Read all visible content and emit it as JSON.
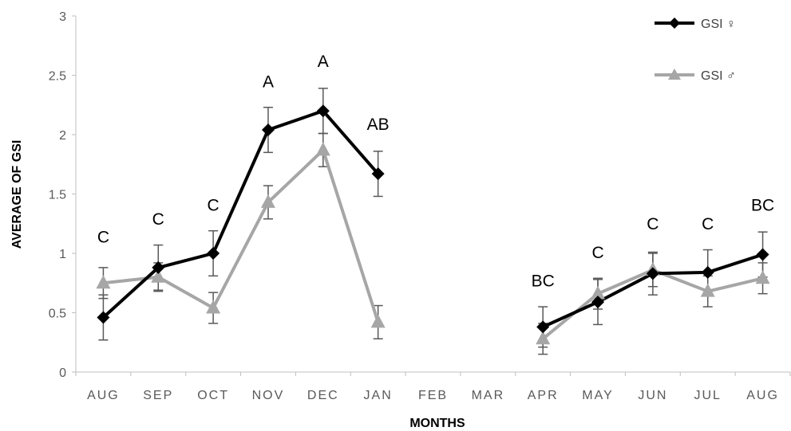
{
  "chart_data": {
    "type": "line",
    "xlabel": "MONTHS",
    "ylabel": "AVERAGE OF GSI",
    "ylim": [
      0,
      3
    ],
    "yticks": [
      "0",
      "0.5",
      "1",
      "1.5",
      "2",
      "2.5",
      "3"
    ],
    "categories": [
      "AUG",
      "SEP",
      "OCT",
      "NOV",
      "DEC",
      "JAN",
      "FEB",
      "MAR",
      "APR",
      "MAY",
      "JUN",
      "JUL",
      "AUG"
    ],
    "grid": false,
    "legend_position": "top-right",
    "series": [
      {
        "name": "GSI ♀",
        "color": "#000000",
        "marker": "diamond",
        "values": [
          0.46,
          0.88,
          1.0,
          2.04,
          2.2,
          1.67,
          null,
          null,
          0.38,
          0.59,
          0.83,
          0.84,
          0.99
        ],
        "errors": [
          0.19,
          0.19,
          0.19,
          0.19,
          0.19,
          0.19,
          null,
          null,
          0.17,
          0.19,
          0.18,
          0.19,
          0.19
        ]
      },
      {
        "name": "GSI ♂",
        "color": "#a6a6a6",
        "marker": "triangle",
        "values": [
          0.75,
          0.8,
          0.54,
          1.43,
          1.87,
          0.42,
          null,
          null,
          0.28,
          0.66,
          0.86,
          0.68,
          0.79
        ],
        "errors": [
          0.13,
          0.12,
          0.13,
          0.14,
          0.14,
          0.14,
          null,
          null,
          0.13,
          0.13,
          0.14,
          0.13,
          0.13
        ]
      }
    ],
    "annotations": [
      {
        "category_index": 0,
        "text": "C",
        "y": 1.09
      },
      {
        "category_index": 1,
        "text": "C",
        "y": 1.24
      },
      {
        "category_index": 2,
        "text": "C",
        "y": 1.36
      },
      {
        "category_index": 3,
        "text": "A",
        "y": 2.4
      },
      {
        "category_index": 4,
        "text": "A",
        "y": 2.57
      },
      {
        "category_index": 5,
        "text": "AB",
        "y": 2.04
      },
      {
        "category_index": 8,
        "text": "BC",
        "y": 0.72
      },
      {
        "category_index": 9,
        "text": "C",
        "y": 0.96
      },
      {
        "category_index": 10,
        "text": "C",
        "y": 1.2
      },
      {
        "category_index": 11,
        "text": "C",
        "y": 1.2
      },
      {
        "category_index": 12,
        "text": "BC",
        "y": 1.36
      }
    ]
  }
}
